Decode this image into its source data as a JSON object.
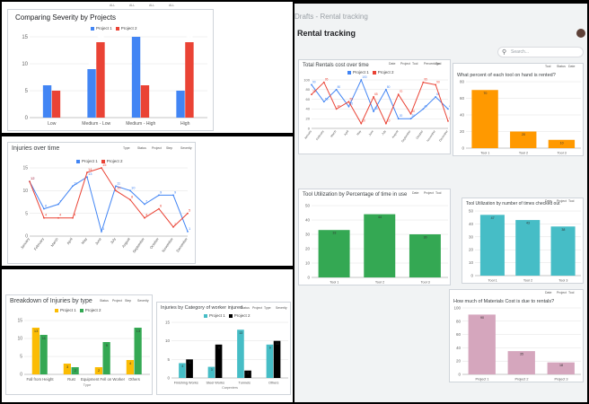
{
  "left_panels": {
    "severity": {
      "title": "Comparing Severity by Projects",
      "top_tags": [
        "ALL",
        "ALL",
        "ALL",
        "ALL"
      ],
      "chart_data": {
        "type": "bar",
        "title": "Comparing Severity by Projects",
        "categories": [
          "Low",
          "Medium - Low",
          "Medium - High",
          "High"
        ],
        "series": [
          {
            "name": "Project 1",
            "values": [
              6,
              9,
              15,
              5
            ]
          },
          {
            "name": "Project 2",
            "values": [
              5,
              14,
              6,
              14
            ]
          }
        ],
        "ylim": [
          0,
          15
        ],
        "yticks": [
          0,
          5,
          10,
          15
        ],
        "colors": [
          "#4285f4",
          "#ea4335"
        ]
      }
    },
    "injuries_time": {
      "title": "Injuries over time",
      "filters": [
        "Type",
        "Status",
        "Project",
        "Step",
        "Severity"
      ],
      "chart_data": {
        "type": "line",
        "title": "Injuries over time",
        "categories": [
          "January",
          "February",
          "March",
          "April",
          "May",
          "June",
          "July",
          "August",
          "September",
          "October",
          "November",
          "December"
        ],
        "series": [
          {
            "name": "Project 1",
            "values": [
              12,
              6,
              7,
              11,
              13,
              1,
              11,
              10,
              7,
              9,
              9,
              1
            ]
          },
          {
            "name": "Project 2",
            "values": [
              12,
              4,
              4,
              4,
              14,
              15,
              10,
              8,
              4,
              6,
              2,
              5
            ]
          }
        ],
        "ylim": [
          0,
          15
        ],
        "yticks": [
          0,
          5,
          10,
          15
        ],
        "colors": [
          "#4285f4",
          "#ea4335"
        ]
      }
    },
    "breakdown": {
      "title": "Breakdown of Injuries by type",
      "filters": [
        "Status",
        "Project",
        "Step",
        "Severity"
      ],
      "xlabel": "Type",
      "chart_data": {
        "type": "bar",
        "title": "Breakdown of Injuries by type",
        "categories": [
          "Fall from Height",
          "Rust",
          "Equipment Fell on Worker",
          "Others"
        ],
        "series": [
          {
            "name": "Project 1",
            "values": [
              13,
              3,
              2,
              4
            ]
          },
          {
            "name": "Project 2",
            "values": [
              11,
              2,
              9,
              13
            ]
          }
        ],
        "ylim": [
          0,
          15
        ],
        "yticks": [
          0,
          5,
          10,
          15
        ],
        "colors": [
          "#fbbc04",
          "#34a853"
        ]
      }
    },
    "category": {
      "title": "Injuries by Category of worker injured",
      "filters": [
        "Status",
        "Project",
        "Type",
        "Severity"
      ],
      "xlabel": "Carpenters",
      "chart_data": {
        "type": "bar",
        "title": "Injuries by Category of worker injured",
        "categories": [
          "Finishing Works",
          "Steel Works",
          "Tunnels",
          "Others"
        ],
        "series": [
          {
            "name": "Project 1",
            "values": [
              4,
              3,
              13,
              9
            ]
          },
          {
            "name": "Project 2",
            "values": [
              5,
              9,
              2,
              10
            ]
          }
        ],
        "ylim": [
          0,
          15
        ],
        "yticks": [
          0,
          5,
          10,
          15
        ],
        "colors": [
          "#46bdc6",
          "#000000"
        ]
      }
    }
  },
  "right_panel": {
    "app_header": "Drafts - Rental tracking",
    "page_title": "Rental tracking",
    "search_placeholder": "Search...",
    "cards": {
      "rentals_cost": {
        "title": "Total Rentals cost over time",
        "filters": [
          "Date",
          "Project",
          "Tool",
          "Percentage",
          "Tool"
        ],
        "chart_data": {
          "type": "line",
          "title": "Total Rentals cost over time",
          "categories": [
            "January",
            "February",
            "March",
            "April",
            "May",
            "June",
            "July",
            "August",
            "September",
            "October",
            "November",
            "December"
          ],
          "series": [
            {
              "name": "Project 1",
              "values": [
                90,
                55,
                80,
                45,
                100,
                35,
                80,
                20,
                20,
                40,
                65,
                40
              ]
            },
            {
              "name": "Project 2",
              "values": [
                70,
                95,
                40,
                55,
                10,
                65,
                10,
                70,
                30,
                95,
                90,
                15
              ]
            }
          ],
          "ylim": [
            0,
            100
          ],
          "yticks": [
            0,
            20,
            40,
            60,
            80,
            100
          ],
          "colors": [
            "#4285f4",
            "#ea4335"
          ]
        }
      },
      "percent_rented": {
        "title": "What percent of each tool on hand is rented?",
        "filters": [
          "Tool",
          "Status",
          "Date"
        ],
        "chart_data": {
          "type": "bar",
          "title": "What percent of each tool on hand is rented?",
          "categories": [
            "Tool 1",
            "Tool 2",
            "Tool 3"
          ],
          "values": [
            70,
            20,
            10
          ],
          "ylim": [
            0,
            80
          ],
          "yticks": [
            0,
            20,
            40,
            60,
            80
          ],
          "colors": [
            "#ff9900"
          ]
        }
      },
      "util_time": {
        "title": "Tool Utilization by Percentage of time in use",
        "filters": [
          "Date",
          "Project",
          "Tool"
        ],
        "chart_data": {
          "type": "bar",
          "title": "Tool Utilization by Percentage of time in use",
          "categories": [
            "Tool 1",
            "Tool 2",
            "Tool 3"
          ],
          "values": [
            33,
            44,
            30
          ],
          "ylim": [
            0,
            50
          ],
          "yticks": [
            0,
            10,
            20,
            30,
            40,
            50
          ],
          "colors": [
            "#34a853"
          ]
        }
      },
      "util_count": {
        "title": "Tool Utilization by number of times checked out",
        "filters": [
          "Date",
          "Project",
          "Tool"
        ],
        "chart_data": {
          "type": "bar",
          "title": "Tool Utilization by number of times checked out",
          "categories": [
            "Tool 1",
            "Tool 2",
            "Tool 3"
          ],
          "values": [
            47,
            43,
            38
          ],
          "ylim": [
            0,
            50
          ],
          "yticks": [
            0,
            10,
            20,
            30,
            40,
            50
          ],
          "colors": [
            "#46bdc6"
          ]
        }
      },
      "materials": {
        "title": "How much of Materials Cost is due to rentals?",
        "filters": [
          "Date",
          "Project",
          "Tool"
        ],
        "chart_data": {
          "type": "bar",
          "title": "How much of Materials Cost is due to rentals?",
          "categories": [
            "Project 1",
            "Project 2",
            "Project 3"
          ],
          "values": [
            90,
            35,
            18
          ],
          "ylim": [
            0,
            100
          ],
          "yticks": [
            0,
            20,
            40,
            60,
            80,
            100
          ],
          "colors": [
            "#d5a6bd"
          ]
        }
      }
    }
  }
}
